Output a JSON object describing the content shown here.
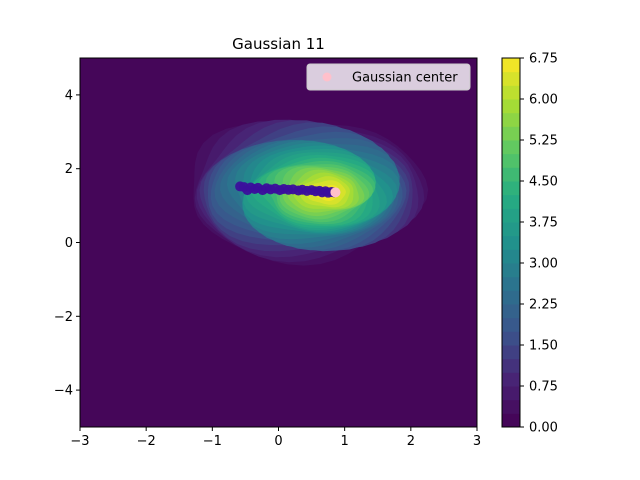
{
  "chart_data": {
    "type": "contour",
    "title": "Gaussian 11",
    "xlabel": "",
    "ylabel": "",
    "xlim": [
      -3,
      3
    ],
    "ylim": [
      -5,
      5
    ],
    "x_ticks": [
      -3,
      -2,
      -1,
      0,
      1,
      2,
      3
    ],
    "x_tick_labels": [
      "−3",
      "−2",
      "−1",
      "0",
      "1",
      "2",
      "3"
    ],
    "y_ticks": [
      -4,
      -2,
      0,
      2,
      4
    ],
    "y_tick_labels": [
      "−4",
      "−2",
      "0",
      "2",
      "4"
    ],
    "colormap": "viridis",
    "colorbar": {
      "min": 0.0,
      "max": 6.75,
      "ticks": [
        0.0,
        0.75,
        1.5,
        2.25,
        3.0,
        3.75,
        4.5,
        5.25,
        6.0,
        6.75
      ],
      "tick_labels": [
        "0.00",
        "0.75",
        "1.50",
        "2.25",
        "3.00",
        "3.75",
        "4.50",
        "5.25",
        "6.00",
        "6.75"
      ]
    },
    "density_peak": {
      "x": 0.75,
      "y": 1.35,
      "value": 6.75
    },
    "trajectory": {
      "color": "#3b0f9c",
      "points": [
        {
          "x": -0.58,
          "y": 1.52
        },
        {
          "x": -0.52,
          "y": 1.5
        },
        {
          "x": -0.47,
          "y": 1.42
        },
        {
          "x": -0.42,
          "y": 1.49
        },
        {
          "x": -0.36,
          "y": 1.45
        },
        {
          "x": -0.31,
          "y": 1.48
        },
        {
          "x": -0.24,
          "y": 1.42
        },
        {
          "x": -0.18,
          "y": 1.47
        },
        {
          "x": -0.12,
          "y": 1.44
        },
        {
          "x": -0.05,
          "y": 1.46
        },
        {
          "x": 0.02,
          "y": 1.42
        },
        {
          "x": 0.08,
          "y": 1.45
        },
        {
          "x": 0.15,
          "y": 1.43
        },
        {
          "x": 0.22,
          "y": 1.44
        },
        {
          "x": 0.3,
          "y": 1.41
        },
        {
          "x": 0.36,
          "y": 1.43
        },
        {
          "x": 0.43,
          "y": 1.4
        },
        {
          "x": 0.5,
          "y": 1.42
        },
        {
          "x": 0.56,
          "y": 1.39
        },
        {
          "x": 0.62,
          "y": 1.4
        },
        {
          "x": 0.66,
          "y": 1.36
        },
        {
          "x": 0.71,
          "y": 1.39
        },
        {
          "x": 0.75,
          "y": 1.35
        },
        {
          "x": 0.8,
          "y": 1.37
        },
        {
          "x": 0.84,
          "y": 1.36
        }
      ]
    },
    "gaussian_center": {
      "x": 0.86,
      "y": 1.36,
      "color": "#ffc0cb"
    },
    "legend": {
      "entries": [
        "Gaussian center"
      ],
      "placement": "upper right"
    }
  }
}
